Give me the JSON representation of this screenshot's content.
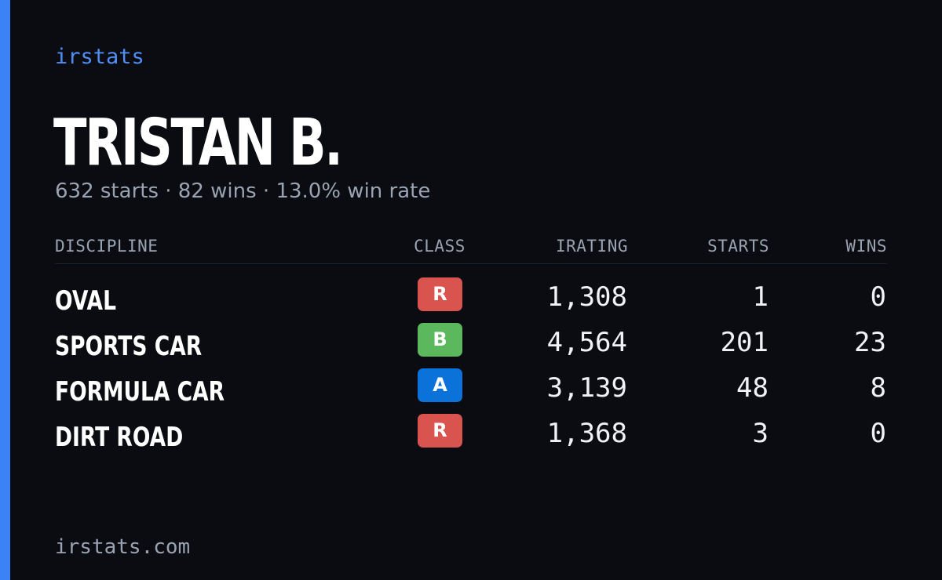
{
  "brand": "irstats",
  "driver": {
    "name": "TRISTAN B.",
    "summary": "632 starts · 82 wins · 13.0% win rate"
  },
  "table": {
    "headers": {
      "discipline": "DISCIPLINE",
      "class": "CLASS",
      "irating": "IRATING",
      "starts": "STARTS",
      "wins": "WINS"
    },
    "rows": [
      {
        "discipline": "OVAL",
        "class": "R",
        "class_color": "#d9534f",
        "irating": "1,308",
        "starts": "1",
        "wins": "0"
      },
      {
        "discipline": "SPORTS CAR",
        "class": "B",
        "class_color": "#5cb85c",
        "irating": "4,564",
        "starts": "201",
        "wins": "23"
      },
      {
        "discipline": "FORMULA CAR",
        "class": "A",
        "class_color": "#0b72d9",
        "irating": "3,139",
        "starts": "48",
        "wins": "8"
      },
      {
        "discipline": "DIRT ROAD",
        "class": "R",
        "class_color": "#d9534f",
        "irating": "1,368",
        "starts": "3",
        "wins": "0"
      }
    ]
  },
  "footer": "irstats.com",
  "colors": {
    "background": "#0a0c12",
    "accent": "#3b82f6",
    "muted_text": "#9aa3b2"
  }
}
